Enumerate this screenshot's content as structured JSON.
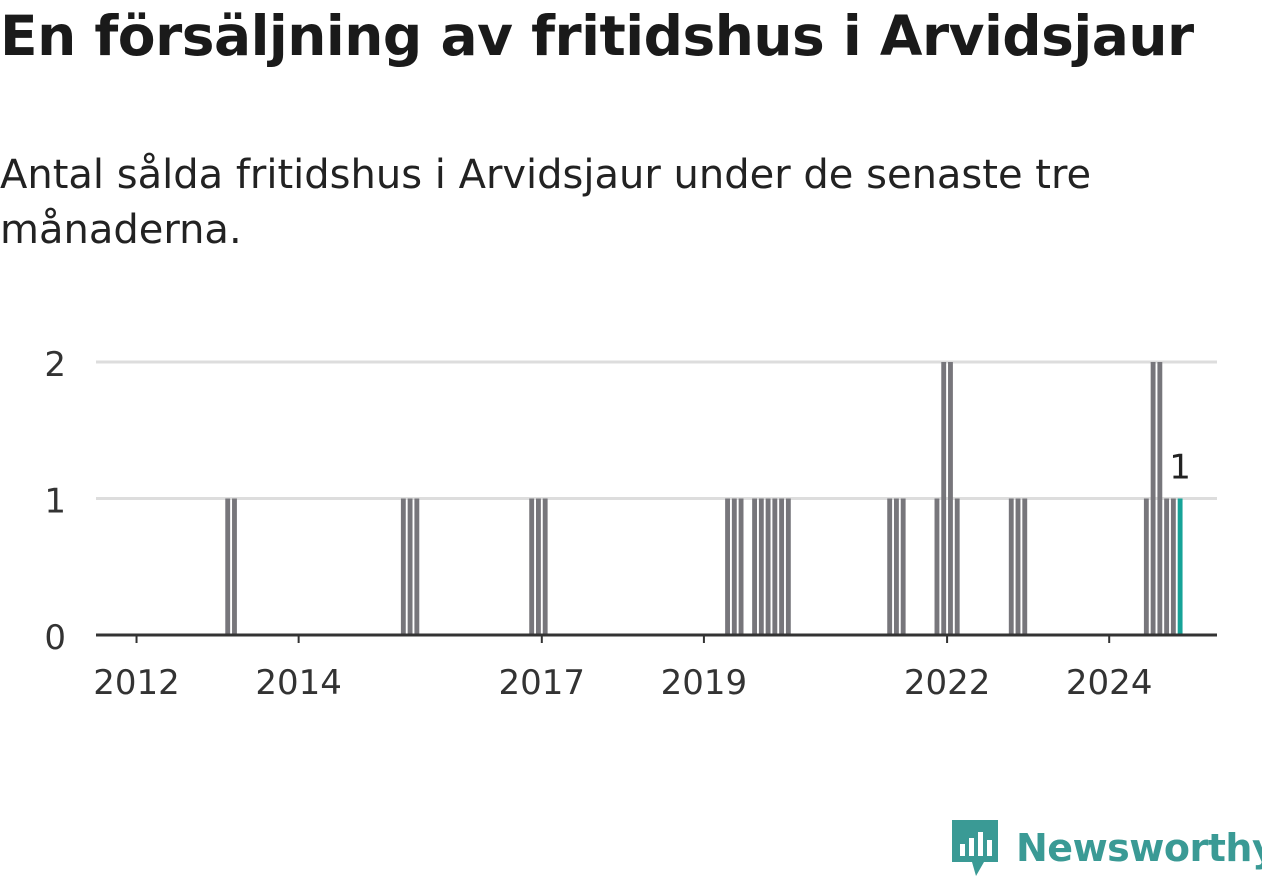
{
  "title": "En försäljning av fritidshus i Arvidsjaur",
  "subtitle": "Antal sålda fritidshus i Arvidsjaur under de senaste tre månaderna.",
  "brand": {
    "name": "Newsworthy",
    "color": "#3a9a95"
  },
  "colors": {
    "bar": "#77767b",
    "highlight": "#17a398",
    "grid": "#dddddd",
    "axis": "#333333"
  },
  "chart_data": {
    "type": "bar",
    "x_axis": {
      "min": 2011.5,
      "max": 2025.33,
      "ticks": [
        "2012",
        "2014",
        "2017",
        "2019",
        "2022",
        "2024"
      ]
    },
    "y_axis": {
      "min": 0,
      "max": 2,
      "ticks": [
        "0",
        "1",
        "2"
      ]
    },
    "grid": true,
    "x": [
      "2013-02",
      "2013-03",
      "2015-04",
      "2015-05",
      "2015-06",
      "2016-11",
      "2016-12",
      "2017-01",
      "2019-04",
      "2019-05",
      "2019-06",
      "2019-08",
      "2019-09",
      "2019-10",
      "2019-11",
      "2019-12",
      "2020-01",
      "2021-04",
      "2021-05",
      "2021-06",
      "2021-11",
      "2021-12",
      "2022-01",
      "2022-02",
      "2022-10",
      "2022-11",
      "2022-12",
      "2024-06",
      "2024-07",
      "2024-08",
      "2024-09",
      "2024-10",
      "2024-11"
    ],
    "values": [
      1,
      1,
      1,
      1,
      1,
      1,
      1,
      1,
      1,
      1,
      1,
      1,
      1,
      1,
      1,
      1,
      1,
      1,
      1,
      1,
      1,
      2,
      2,
      1,
      1,
      1,
      1,
      1,
      2,
      2,
      1,
      1,
      1
    ],
    "highlight": {
      "x": "2024-11",
      "value": 1,
      "label": "1"
    }
  }
}
